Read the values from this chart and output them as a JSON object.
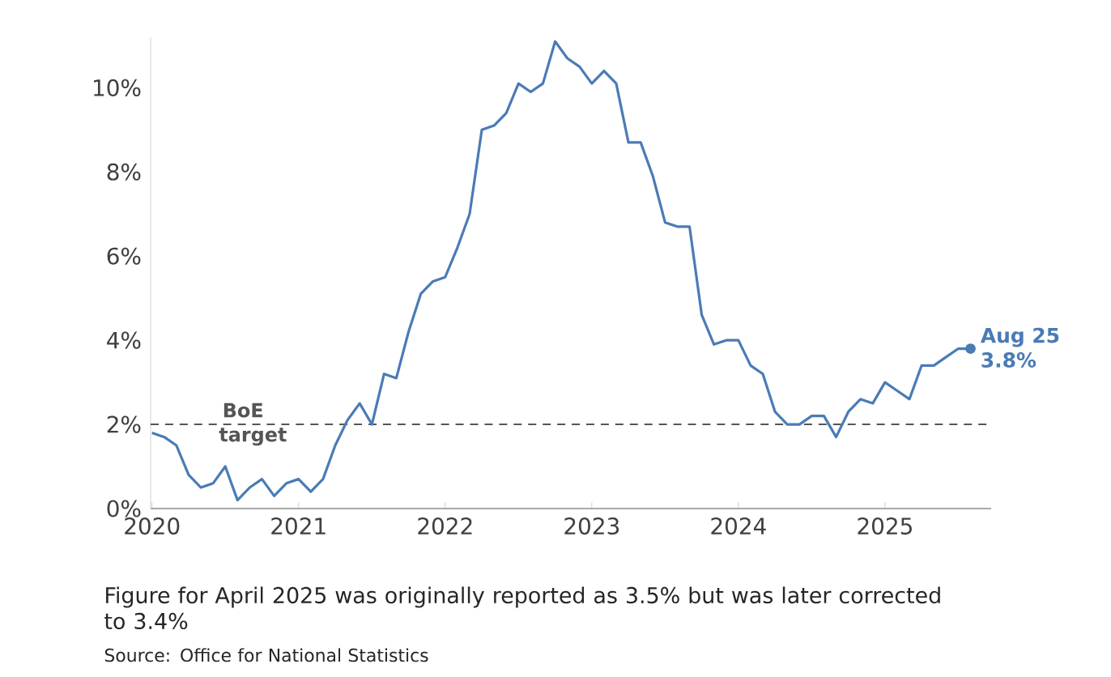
{
  "chart_data": {
    "type": "line",
    "x": [
      "2020-01",
      "2020-02",
      "2020-03",
      "2020-04",
      "2020-05",
      "2020-06",
      "2020-07",
      "2020-08",
      "2020-09",
      "2020-10",
      "2020-11",
      "2020-12",
      "2021-01",
      "2021-02",
      "2021-03",
      "2021-04",
      "2021-05",
      "2021-06",
      "2021-07",
      "2021-08",
      "2021-09",
      "2021-10",
      "2021-11",
      "2021-12",
      "2022-01",
      "2022-02",
      "2022-03",
      "2022-04",
      "2022-05",
      "2022-06",
      "2022-07",
      "2022-08",
      "2022-09",
      "2022-10",
      "2022-11",
      "2022-12",
      "2023-01",
      "2023-02",
      "2023-03",
      "2023-04",
      "2023-05",
      "2023-06",
      "2023-07",
      "2023-08",
      "2023-09",
      "2023-10",
      "2023-11",
      "2023-12",
      "2024-01",
      "2024-02",
      "2024-03",
      "2024-04",
      "2024-05",
      "2024-06",
      "2024-07",
      "2024-08",
      "2024-09",
      "2024-10",
      "2024-11",
      "2024-12",
      "2025-01",
      "2025-02",
      "2025-03",
      "2025-04",
      "2025-05",
      "2025-06",
      "2025-07",
      "2025-08"
    ],
    "series": [
      {
        "color": "#4a7bb5",
        "values": [
          1.8,
          1.7,
          1.5,
          0.8,
          0.5,
          0.6,
          1.0,
          0.2,
          0.5,
          0.7,
          0.3,
          0.6,
          0.7,
          0.4,
          0.7,
          1.5,
          2.1,
          2.5,
          2.0,
          3.2,
          3.1,
          4.2,
          5.1,
          5.4,
          5.5,
          6.2,
          7.0,
          9.0,
          9.1,
          9.4,
          10.1,
          9.9,
          10.1,
          11.1,
          10.7,
          10.5,
          10.1,
          10.4,
          10.1,
          8.7,
          8.7,
          7.9,
          6.8,
          6.7,
          6.7,
          4.6,
          3.9,
          4.0,
          4.0,
          3.4,
          3.2,
          2.3,
          2.0,
          2.0,
          2.2,
          2.2,
          1.7,
          2.3,
          2.6,
          2.5,
          3.0,
          2.8,
          2.6,
          3.4,
          3.4,
          3.6,
          3.8,
          3.8
        ]
      }
    ],
    "xlim": [
      "2019-12-28",
      "2025-09-22"
    ],
    "xticks": [
      "2020",
      "2021",
      "2022",
      "2023",
      "2024",
      "2025"
    ],
    "ylim": [
      0,
      11.2
    ],
    "yticks": [
      {
        "value": 0,
        "label": "0%"
      },
      {
        "value": 2,
        "label": "2%"
      },
      {
        "value": 4,
        "label": "4%"
      },
      {
        "value": 6,
        "label": "6%"
      },
      {
        "value": 8,
        "label": "8%"
      },
      {
        "value": 10,
        "label": "10%"
      }
    ],
    "ref_lines": [
      {
        "axis": "y",
        "value": 2,
        "label": "BoE target",
        "color": "#555555",
        "line_style": "dashed"
      }
    ],
    "annotations": [
      {
        "text": "Aug 25",
        "x": "2025-08",
        "y": 3.8
      },
      {
        "text": "3.8%",
        "x": "2025-08",
        "y": 3.8
      },
      "Figure for April 2025 was originally reported as 3.5% but was later corrected to 3.4%",
      "Source: Office for National Statistics"
    ]
  }
}
